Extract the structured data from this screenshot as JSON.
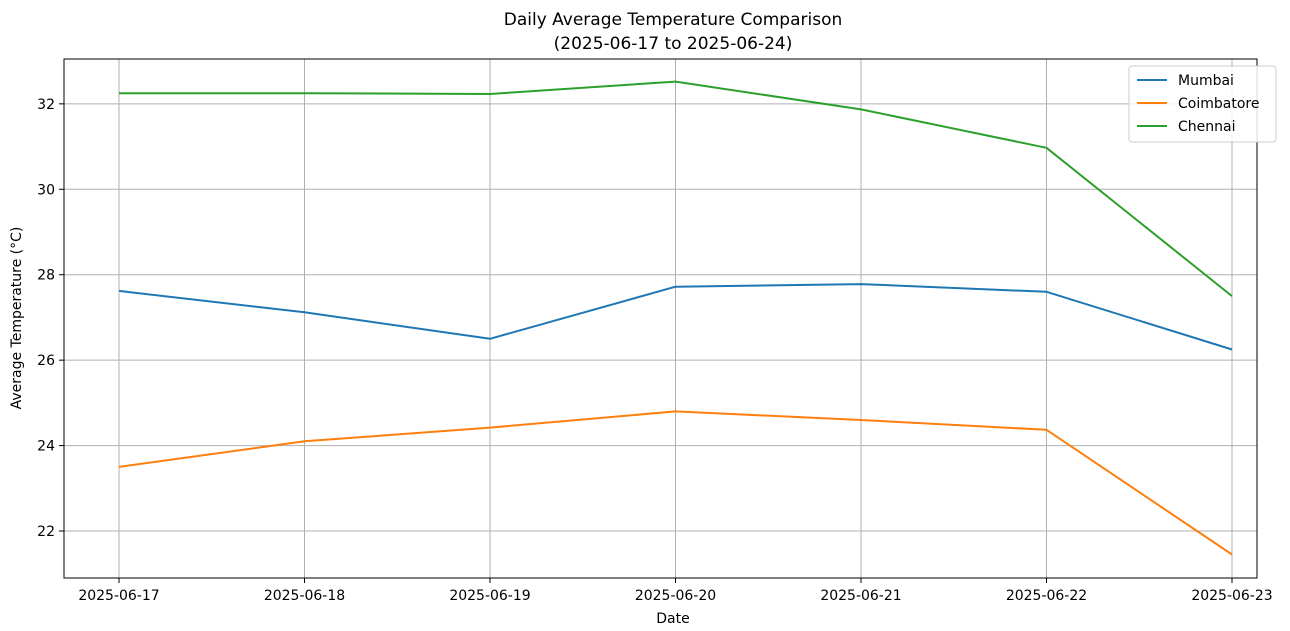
{
  "chart_data": {
    "type": "line",
    "title": "Daily Average Temperature Comparison",
    "subtitle": "(2025-06-17 to 2025-06-24)",
    "xlabel": "Date",
    "ylabel": "Average Temperature (°C)",
    "x": [
      "2025-06-17",
      "2025-06-18",
      "2025-06-19",
      "2025-06-20",
      "2025-06-21",
      "2025-06-22",
      "2025-06-23"
    ],
    "ylim": [
      20.9,
      33.05
    ],
    "yticks": [
      22,
      24,
      26,
      28,
      30,
      32
    ],
    "grid": true,
    "legend_position": "top-right",
    "series": [
      {
        "name": "Mumbai",
        "color": "#1f77b4",
        "values": [
          27.62,
          27.12,
          26.5,
          27.72,
          27.78,
          27.6,
          26.25
        ]
      },
      {
        "name": "Coimbatore",
        "color": "#ff7f0e",
        "values": [
          23.5,
          24.1,
          24.42,
          24.8,
          24.6,
          24.37,
          21.45
        ]
      },
      {
        "name": "Chennai",
        "color": "#2ca02c",
        "values": [
          32.25,
          32.25,
          32.23,
          32.52,
          31.87,
          30.97,
          27.5
        ]
      }
    ]
  }
}
